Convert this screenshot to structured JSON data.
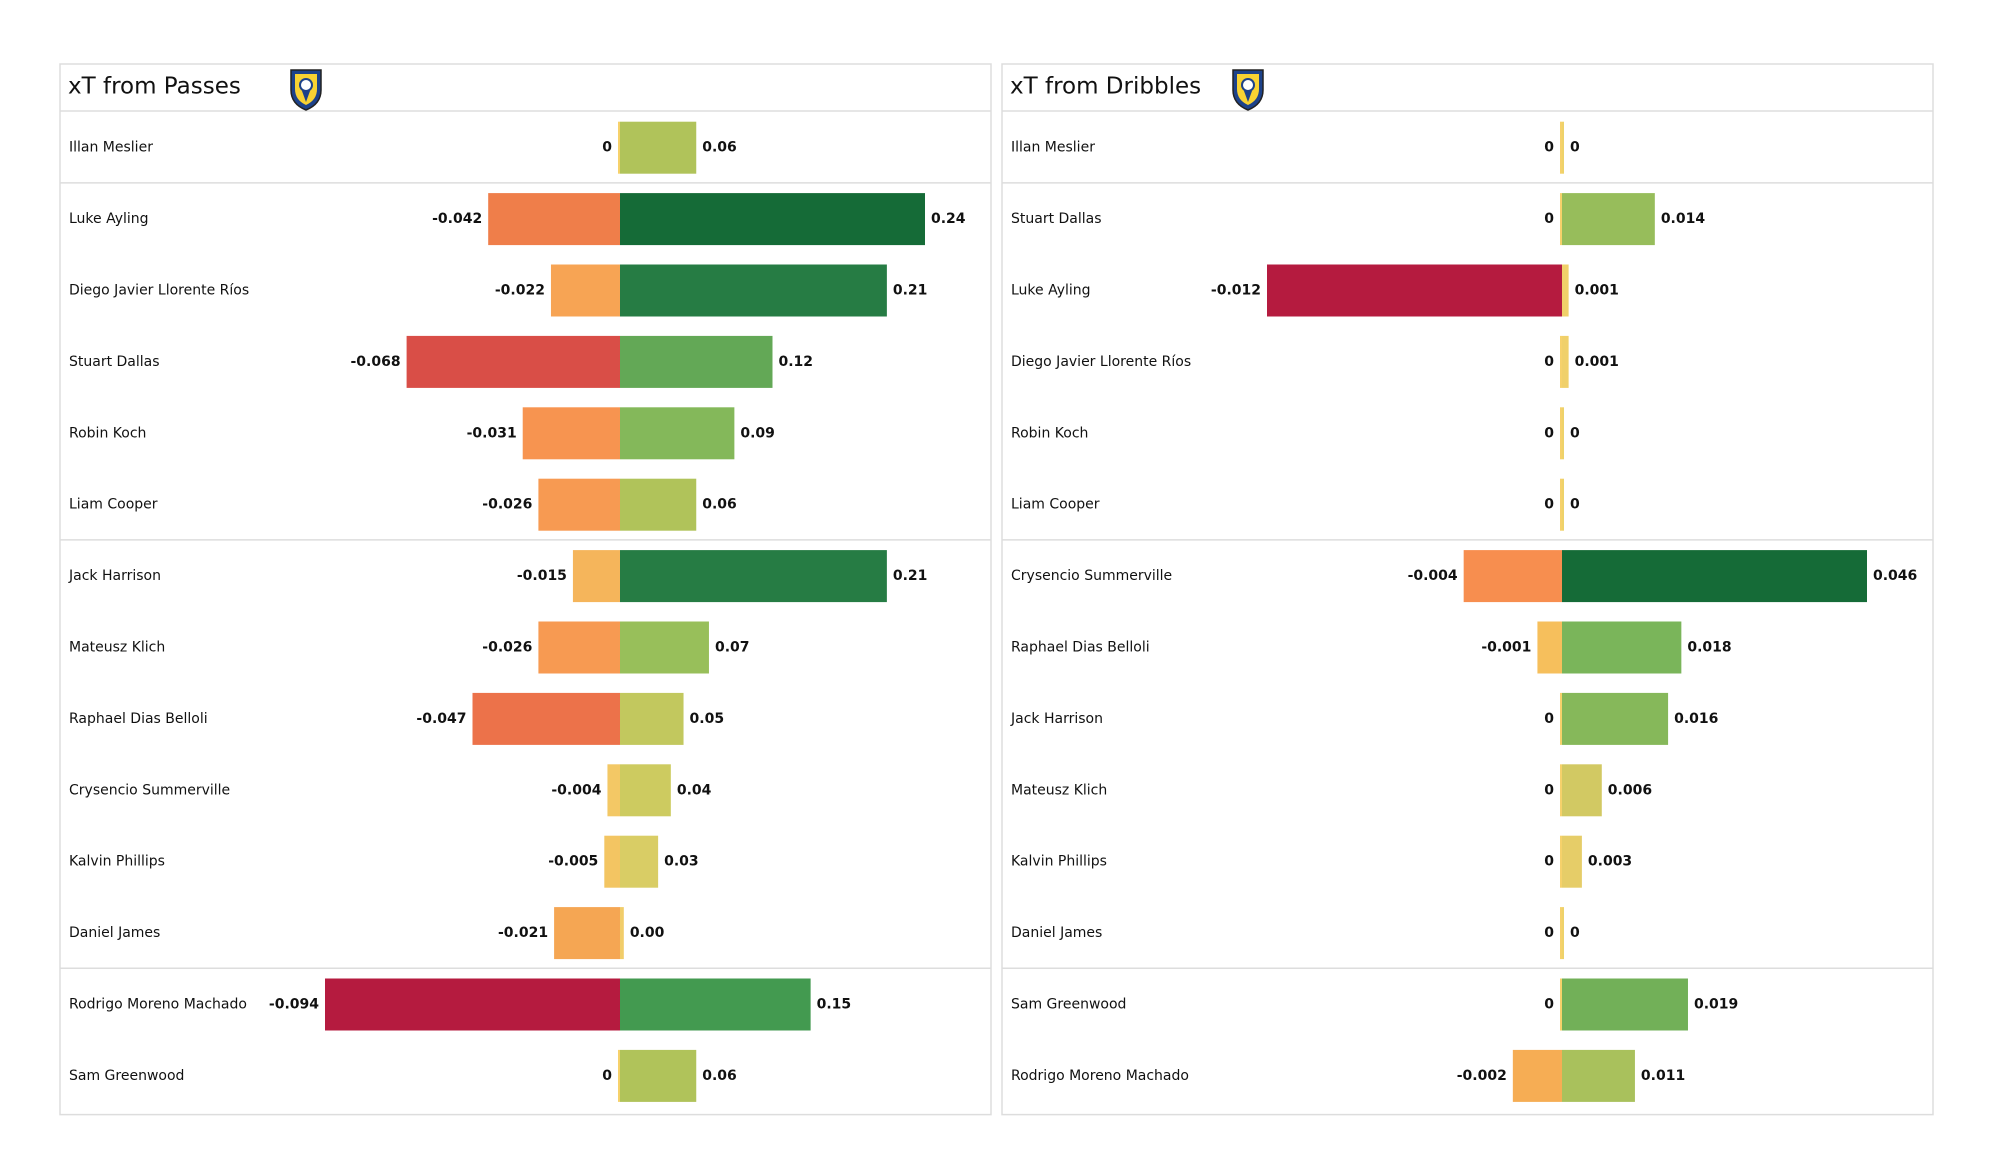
{
  "chart_data": [
    {
      "type": "diverging-bar",
      "title": "xT from Passes",
      "categories": [
        "Illan Meslier",
        "Luke Ayling",
        "Diego Javier Llorente Ríos",
        "Stuart Dallas",
        "Robin Koch",
        "Liam Cooper",
        "Jack Harrison",
        "Mateusz Klich",
        "Raphael Dias Belloli",
        "Crysencio Summerville",
        "Kalvin Phillips",
        "Daniel James",
        "Rodrigo Moreno Machado",
        "Sam Greenwood"
      ],
      "xlim": [
        -0.094,
        0.24
      ],
      "series": [
        {
          "values": [
            0,
            -0.042,
            -0.022,
            -0.068,
            -0.031,
            -0.026,
            -0.015,
            -0.026,
            -0.047,
            -0.004,
            -0.005,
            -0.021,
            -0.094,
            0
          ],
          "colors": [
            "#f6d16b",
            "#ef7e4a",
            "#f7a454",
            "#d94e47",
            "#f79450",
            "#f79a52",
            "#f5b55b",
            "#f79a52",
            "#ec724a",
            "#f3c865",
            "#f3c562",
            "#f5a653",
            "#b51b3f",
            "#f6d16b"
          ]
        },
        {
          "values": [
            0.06,
            0.24,
            0.21,
            0.12,
            0.09,
            0.06,
            0.21,
            0.07,
            0.05,
            0.04,
            0.03,
            0.003,
            0.15,
            0.06
          ],
          "value_labels": [
            "0.06",
            "0.24",
            "0.21",
            "0.12",
            "0.09",
            "0.06",
            "0.21",
            "0.07",
            "0.05",
            "0.04",
            "0.03",
            "0.00",
            "0.15",
            "0.06"
          ],
          "colors": [
            "#b0c35a",
            "#156b37",
            "#267c44",
            "#63a856",
            "#84b85a",
            "#b0c35a",
            "#267c44",
            "#98bf5a",
            "#c2c85e",
            "#cdcb60",
            "#d9cd65",
            "#f1cd6a",
            "#439a50",
            "#b0c35a"
          ]
        }
      ]
    },
    {
      "type": "diverging-bar",
      "title": "xT from Dribbles",
      "categories": [
        "Illan Meslier",
        "Stuart Dallas",
        "Luke Ayling",
        "Diego Javier Llorente Ríos",
        "Robin Koch",
        "Liam Cooper",
        "Crysencio Summerville",
        "Raphael Dias Belloli",
        "Jack Harrison",
        "Mateusz Klich",
        "Kalvin Phillips",
        "Daniel James",
        "Sam Greenwood",
        "Rodrigo Moreno Machado"
      ],
      "xlim": [
        -0.012,
        0.046
      ],
      "series": [
        {
          "values": [
            0,
            0,
            -0.012,
            0,
            0,
            0,
            -0.004,
            -0.001,
            0,
            0,
            0,
            0,
            0,
            -0.002
          ],
          "colors": [
            "#f6d16b",
            "#f6d16b",
            "#b51b3f",
            "#f6d16b",
            "#f6d16b",
            "#f6d16b",
            "#f78e4f",
            "#f6bf5c",
            "#f6d16b",
            "#f6d16b",
            "#f6d16b",
            "#f6d16b",
            "#f6d16b",
            "#f6ad54"
          ]
        },
        {
          "values": [
            0,
            0.014,
            0.001,
            0.001,
            0,
            0,
            0.046,
            0.018,
            0.016,
            0.006,
            0.003,
            0,
            0.019,
            0.011
          ],
          "colors": [
            "#eed26a",
            "#97bd5b",
            "#f0d06a",
            "#f0d06a",
            "#eed26a",
            "#eed26a",
            "#156b37",
            "#7ab55a",
            "#86b85a",
            "#d2c963",
            "#e6cd68",
            "#eed26a",
            "#72b058",
            "#a9c15c"
          ]
        }
      ]
    }
  ]
}
